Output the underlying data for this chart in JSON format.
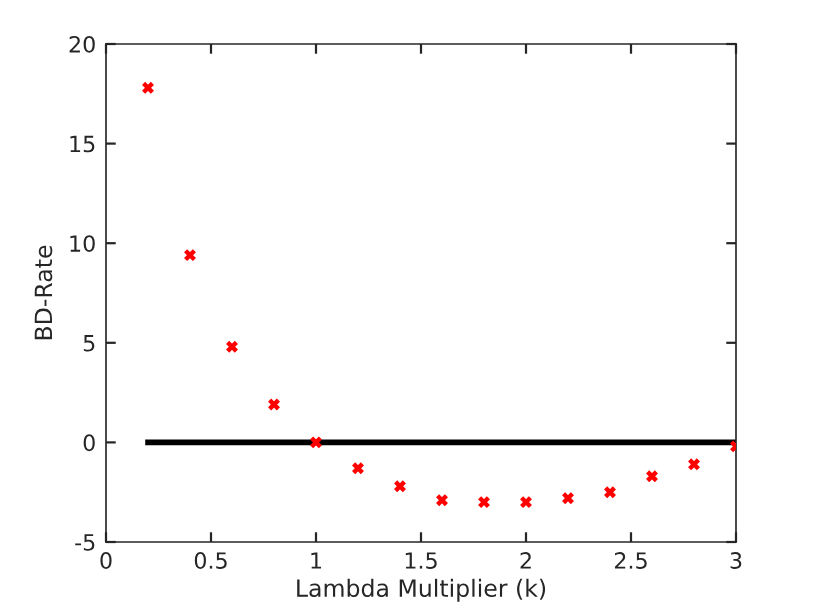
{
  "chart_data": {
    "type": "scatter",
    "xlabel": "Lambda Multiplier (k)",
    "ylabel": "BD-Rate",
    "xlim": [
      0,
      3
    ],
    "ylim": [
      -5,
      20
    ],
    "xticks": [
      0,
      0.5,
      1,
      1.5,
      2,
      2.5,
      3
    ],
    "yticks": [
      -5,
      0,
      5,
      10,
      15,
      20
    ],
    "grid": false,
    "legend": false,
    "series": [
      {
        "color": "#ff0000",
        "marker": "cross",
        "x": [
          0.2,
          0.4,
          0.6,
          0.8,
          1.0,
          1.2,
          1.4,
          1.6,
          1.8,
          2.0,
          2.2,
          2.4,
          2.6,
          2.8,
          3.0
        ],
        "values": [
          17.8,
          9.4,
          4.8,
          1.9,
          0,
          -1.3,
          -2.2,
          -2.9,
          -3.0,
          -3.0,
          -2.8,
          -2.5,
          -1.7,
          -1.1,
          -0.2
        ]
      },
      {
        "type": "line",
        "marker": "none",
        "color": "#000000",
        "x": [
          0.2,
          3.0
        ],
        "values": [
          0,
          0
        ]
      }
    ]
  }
}
